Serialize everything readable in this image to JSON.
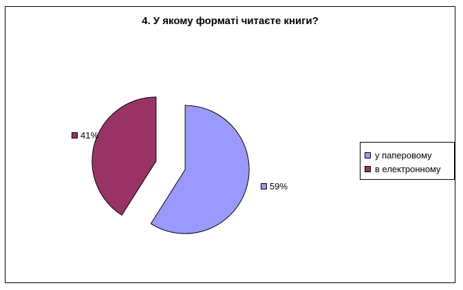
{
  "chart_data": {
    "type": "pie",
    "title": "4. У якому форматі читаєте книги?",
    "slices": [
      {
        "label": "у паперовому",
        "value": 59,
        "data_label": "59%",
        "color": "#9999ff"
      },
      {
        "label": "в електронному",
        "value": 41,
        "data_label": "41%",
        "color": "#993366"
      }
    ],
    "legend_position": "right",
    "exploded": true
  }
}
